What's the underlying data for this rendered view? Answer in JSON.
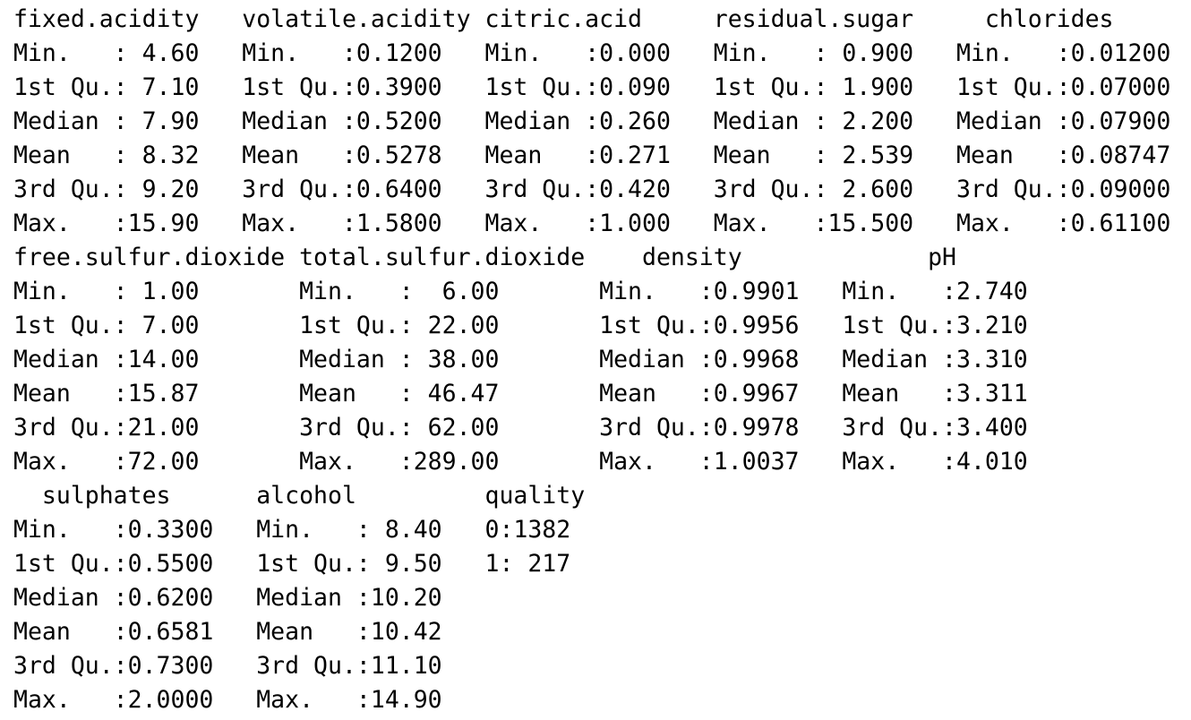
{
  "output": {
    "blocks": [
      {
        "header": "fixed.acidity   volatile.acidity citric.acid     residual.sugar     chlorides",
        "rows": [
          "Min.   : 4.60   Min.   :0.1200   Min.   :0.000   Min.   : 0.900   Min.   :0.01200",
          "1st Qu.: 7.10   1st Qu.:0.3900   1st Qu.:0.090   1st Qu.: 1.900   1st Qu.:0.07000",
          "Median : 7.90   Median :0.5200   Median :0.260   Median : 2.200   Median :0.07900",
          "Mean   : 8.32   Mean   :0.5278   Mean   :0.271   Mean   : 2.539   Mean   :0.08747",
          "3rd Qu.: 9.20   3rd Qu.:0.6400   3rd Qu.:0.420   3rd Qu.: 2.600   3rd Qu.:0.09000",
          "Max.   :15.90   Max.   :1.5800   Max.   :1.000   Max.   :15.500   Max.   :0.61100"
        ]
      },
      {
        "header": "free.sulfur.dioxide total.sulfur.dioxide    density             pH",
        "rows": [
          "Min.   : 1.00       Min.   :  6.00       Min.   :0.9901   Min.   :2.740",
          "1st Qu.: 7.00       1st Qu.: 22.00       1st Qu.:0.9956   1st Qu.:3.210",
          "Median :14.00       Median : 38.00       Median :0.9968   Median :3.310",
          "Mean   :15.87       Mean   : 46.47       Mean   :0.9967   Mean   :3.311",
          "3rd Qu.:21.00       3rd Qu.: 62.00       3rd Qu.:0.9978   3rd Qu.:3.400",
          "Max.   :72.00       Max.   :289.00       Max.   :1.0037   Max.   :4.010"
        ]
      },
      {
        "header": "  sulphates      alcohol         quality",
        "rows": [
          "Min.   :0.3300   Min.   : 8.40   0:1382",
          "1st Qu.:0.5500   1st Qu.: 9.50   1: 217",
          "Median :0.6200   Median :10.20",
          "Mean   :0.6581   Mean   :10.42",
          "3rd Qu.:0.7300   3rd Qu.:11.10",
          "Max.   :2.0000   Max.   :14.90"
        ]
      }
    ]
  }
}
